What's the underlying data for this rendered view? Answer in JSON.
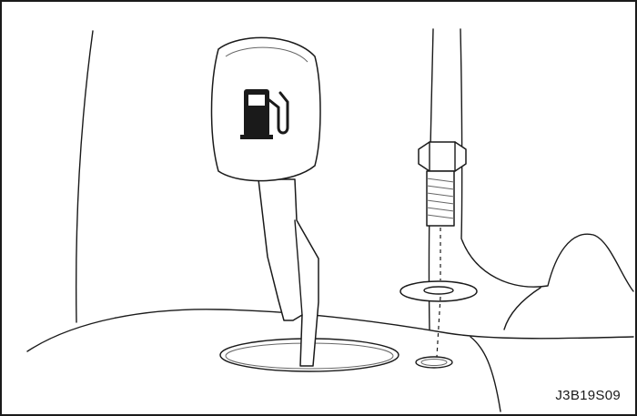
{
  "figure": {
    "code": "J3B19S09",
    "icons": [
      "fuel-pump-icon"
    ],
    "parts": [
      "fuel-door-release-lever",
      "bolt",
      "washer",
      "mounting-hole"
    ],
    "colors": {
      "stroke": "#1a1a1a",
      "background": "#ffffff"
    }
  }
}
